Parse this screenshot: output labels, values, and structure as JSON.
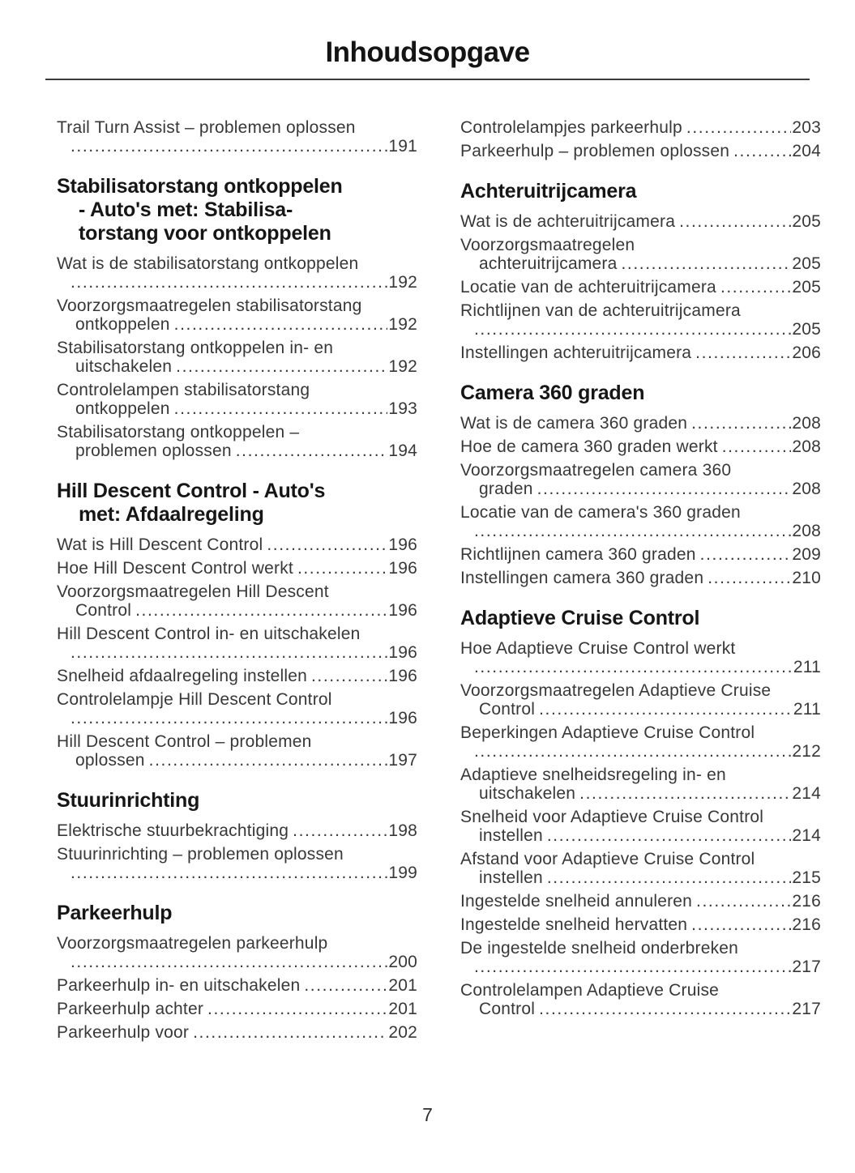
{
  "toc": {
    "title": "Inhoudsopgave",
    "page_number": "7",
    "colors": {
      "background": "#ffffff",
      "body_text": "#383838",
      "heading_text": "#161616"
    },
    "columns": [
      {
        "blocks": [
          {
            "type": "entry",
            "lines": [
              {
                "text": "Trail Turn Assist – problemen oplossen"
              },
              {
                "page": "191"
              }
            ]
          },
          {
            "type": "heading",
            "lines": [
              "Stabilisatorstang ontkoppelen",
              "- Auto's met: Stabilisa-",
              "torstang voor ontkoppelen"
            ]
          },
          {
            "type": "entry",
            "lines": [
              {
                "text": "Wat is de stabilisatorstang ontkoppelen"
              },
              {
                "page": "192"
              }
            ]
          },
          {
            "type": "entry",
            "lines": [
              {
                "text": "Voorzorgsmaatregelen stabilisatorstang"
              },
              {
                "text": "ontkoppelen",
                "page": "192"
              }
            ]
          },
          {
            "type": "entry",
            "lines": [
              {
                "text": "Stabilisatorstang ontkoppelen in- en"
              },
              {
                "text": "uitschakelen",
                "page": "192"
              }
            ]
          },
          {
            "type": "entry",
            "lines": [
              {
                "text": "Controlelampen stabilisatorstang"
              },
              {
                "text": "ontkoppelen",
                "page": "193"
              }
            ]
          },
          {
            "type": "entry",
            "lines": [
              {
                "text": "Stabilisatorstang ontkoppelen –"
              },
              {
                "text": "problemen oplossen",
                "page": "194"
              }
            ]
          },
          {
            "type": "heading",
            "lines": [
              "Hill Descent Control - Auto's",
              "met: Afdaalregeling"
            ]
          },
          {
            "type": "entry",
            "lines": [
              {
                "text": "Wat is Hill Descent Control",
                "page": "196"
              }
            ]
          },
          {
            "type": "entry",
            "lines": [
              {
                "text": "Hoe Hill Descent Control werkt",
                "page": "196"
              }
            ]
          },
          {
            "type": "entry",
            "lines": [
              {
                "text": "Voorzorgsmaatregelen Hill Descent"
              },
              {
                "text": "Control",
                "page": "196"
              }
            ]
          },
          {
            "type": "entry",
            "lines": [
              {
                "text": "Hill Descent Control in- en uitschakelen"
              },
              {
                "page": "196"
              }
            ]
          },
          {
            "type": "entry",
            "lines": [
              {
                "text": "Snelheid afdaalregeling instellen",
                "page": "196"
              }
            ]
          },
          {
            "type": "entry",
            "lines": [
              {
                "text": "Controlelampje Hill Descent Control"
              },
              {
                "page": "196"
              }
            ]
          },
          {
            "type": "entry",
            "lines": [
              {
                "text": "Hill Descent Control – problemen"
              },
              {
                "text": "oplossen",
                "page": "197"
              }
            ]
          },
          {
            "type": "heading",
            "lines": [
              "Stuurinrichting"
            ]
          },
          {
            "type": "entry",
            "lines": [
              {
                "text": "Elektrische stuurbekrachtiging",
                "page": "198"
              }
            ]
          },
          {
            "type": "entry",
            "lines": [
              {
                "text": "Stuurinrichting – problemen oplossen"
              },
              {
                "page": "199"
              }
            ]
          },
          {
            "type": "heading",
            "lines": [
              "Parkeerhulp"
            ]
          },
          {
            "type": "entry",
            "lines": [
              {
                "text": "Voorzorgsmaatregelen parkeerhulp"
              },
              {
                "page": "200"
              }
            ]
          },
          {
            "type": "entry",
            "lines": [
              {
                "text": "Parkeerhulp in- en uitschakelen",
                "page": "201"
              }
            ]
          },
          {
            "type": "entry",
            "lines": [
              {
                "text": "Parkeerhulp achter",
                "page": "201"
              }
            ]
          },
          {
            "type": "entry",
            "lines": [
              {
                "text": "Parkeerhulp voor",
                "page": "202"
              }
            ]
          }
        ]
      },
      {
        "blocks": [
          {
            "type": "entry",
            "lines": [
              {
                "text": "Controlelampjes parkeerhulp",
                "page": "203"
              }
            ]
          },
          {
            "type": "entry",
            "lines": [
              {
                "text": "Parkeerhulp – problemen oplossen",
                "page": "204"
              }
            ]
          },
          {
            "type": "heading",
            "lines": [
              "Achteruitrijcamera"
            ]
          },
          {
            "type": "entry",
            "lines": [
              {
                "text": "Wat is de achteruitrijcamera",
                "page": "205"
              }
            ]
          },
          {
            "type": "entry",
            "lines": [
              {
                "text": "Voorzorgsmaatregelen"
              },
              {
                "text": "achteruitrijcamera",
                "page": "205"
              }
            ]
          },
          {
            "type": "entry",
            "lines": [
              {
                "text": "Locatie van de achteruitrijcamera",
                "page": "205"
              }
            ]
          },
          {
            "type": "entry",
            "lines": [
              {
                "text": "Richtlijnen van de achteruitrijcamera"
              },
              {
                "page": "205"
              }
            ]
          },
          {
            "type": "entry",
            "lines": [
              {
                "text": "Instellingen achteruitrijcamera",
                "page": "206"
              }
            ]
          },
          {
            "type": "heading",
            "lines": [
              "Camera 360 graden"
            ]
          },
          {
            "type": "entry",
            "lines": [
              {
                "text": "Wat is de camera 360 graden",
                "page": "208"
              }
            ]
          },
          {
            "type": "entry",
            "lines": [
              {
                "text": "Hoe de camera 360 graden werkt",
                "page": "208"
              }
            ]
          },
          {
            "type": "entry",
            "lines": [
              {
                "text": "Voorzorgsmaatregelen camera 360"
              },
              {
                "text": "graden",
                "page": "208"
              }
            ]
          },
          {
            "type": "entry",
            "lines": [
              {
                "text": "Locatie van de camera's 360 graden"
              },
              {
                "page": "208"
              }
            ]
          },
          {
            "type": "entry",
            "lines": [
              {
                "text": "Richtlijnen camera 360 graden",
                "page": "209"
              }
            ]
          },
          {
            "type": "entry",
            "lines": [
              {
                "text": "Instellingen camera 360 graden",
                "page": "210"
              }
            ]
          },
          {
            "type": "heading",
            "lines": [
              "Adaptieve Cruise Control"
            ]
          },
          {
            "type": "entry",
            "lines": [
              {
                "text": "Hoe Adaptieve Cruise Control werkt"
              },
              {
                "page": "211"
              }
            ]
          },
          {
            "type": "entry",
            "lines": [
              {
                "text": "Voorzorgsmaatregelen Adaptieve Cruise"
              },
              {
                "text": "Control",
                "page": "211"
              }
            ]
          },
          {
            "type": "entry",
            "lines": [
              {
                "text": "Beperkingen Adaptieve Cruise Control"
              },
              {
                "page": "212"
              }
            ]
          },
          {
            "type": "entry",
            "lines": [
              {
                "text": "Adaptieve snelheidsregeling in- en"
              },
              {
                "text": "uitschakelen",
                "page": "214"
              }
            ]
          },
          {
            "type": "entry",
            "lines": [
              {
                "text": "Snelheid voor Adaptieve Cruise Control"
              },
              {
                "text": "instellen",
                "page": "214"
              }
            ]
          },
          {
            "type": "entry",
            "lines": [
              {
                "text": "Afstand voor Adaptieve Cruise Control"
              },
              {
                "text": "instellen",
                "page": "215"
              }
            ]
          },
          {
            "type": "entry",
            "lines": [
              {
                "text": "Ingestelde snelheid annuleren",
                "page": "216"
              }
            ]
          },
          {
            "type": "entry",
            "lines": [
              {
                "text": "Ingestelde snelheid hervatten",
                "page": "216"
              }
            ]
          },
          {
            "type": "entry",
            "lines": [
              {
                "text": "De ingestelde snelheid onderbreken"
              },
              {
                "page": "217"
              }
            ]
          },
          {
            "type": "entry",
            "lines": [
              {
                "text": "Controlelampen Adaptieve Cruise"
              },
              {
                "text": "Control",
                "page": "217"
              }
            ]
          }
        ]
      }
    ]
  }
}
